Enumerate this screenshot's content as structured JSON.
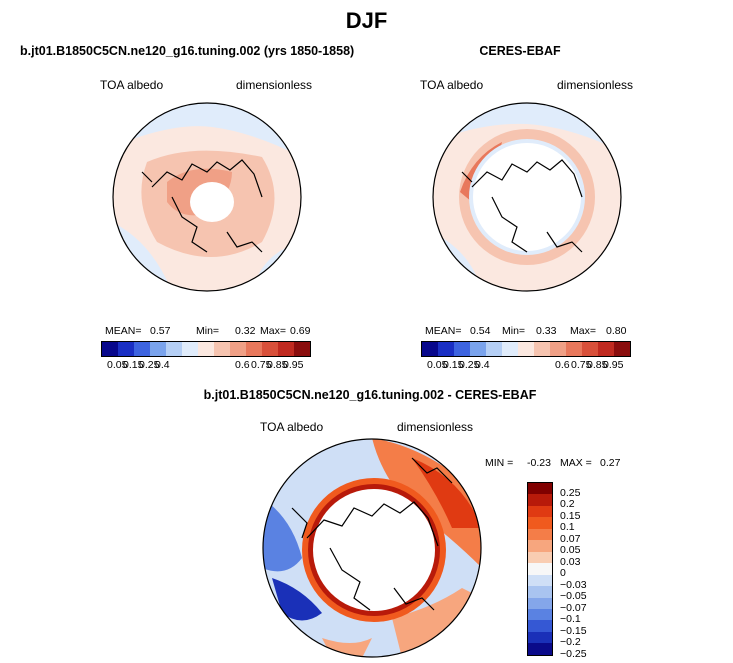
{
  "title": "DJF",
  "panels": [
    {
      "title": "b.jt01.B1850C5CN.ne120_g16.tuning.002 (yrs 1850-1858)",
      "variable": "TOA albedo",
      "units": "dimensionless",
      "stats": {
        "mean_label": "MEAN=",
        "mean": "0.57",
        "min_label": "Min=",
        "min": "0.32",
        "max_label": "Max=",
        "max": "0.69"
      },
      "colorbar_ticks": [
        "0.05",
        "0.15",
        "0.25",
        "0.4",
        "0.6",
        "0.75",
        "0.85",
        "0.95"
      ]
    },
    {
      "title": "CERES-EBAF",
      "variable": "TOA albedo",
      "units": "dimensionless",
      "stats": {
        "mean_label": "MEAN=",
        "mean": "0.54",
        "min_label": "Min=",
        "min": "0.33",
        "max_label": "Max=",
        "max": "0.80"
      },
      "colorbar_ticks": [
        "0.05",
        "0.15",
        "0.25",
        "0.4",
        "0.6",
        "0.75",
        "0.85",
        "0.95"
      ]
    },
    {
      "title": "b.jt01.B1850C5CN.ne120_g16.tuning.002 - CERES-EBAF",
      "variable": "TOA albedo",
      "units": "dimensionless",
      "stats": {
        "min_label": "MIN =",
        "min": "-0.23",
        "max_label": "MAX =",
        "max": "0.27"
      },
      "colorbar_labels": [
        "0.25",
        "0.2",
        "0.15",
        "0.1",
        "0.07",
        "0.05",
        "0.03",
        "0",
        "−0.03",
        "−0.05",
        "−0.07",
        "−0.1",
        "−0.15",
        "−0.2",
        "−0.25"
      ]
    }
  ],
  "colors": {
    "abs_scale": [
      "#08088c",
      "#1a2fc4",
      "#3d64e0",
      "#7aa3ec",
      "#b5cff5",
      "#e0ecfb",
      "#fbe8e0",
      "#f6c4b0",
      "#f0a086",
      "#e8785c",
      "#d8503a",
      "#c02a20",
      "#8a0d0d"
    ],
    "diff_scale": [
      "#800000",
      "#b81a0a",
      "#e03a12",
      "#f05a1e",
      "#f47d48",
      "#f7a67e",
      "#f9cdb2",
      "#f7f7f7",
      "#cfdff6",
      "#a9c4f0",
      "#84a6ea",
      "#5a82e2",
      "#3558d4",
      "#1a30b8",
      "#0a0a8a"
    ]
  }
}
